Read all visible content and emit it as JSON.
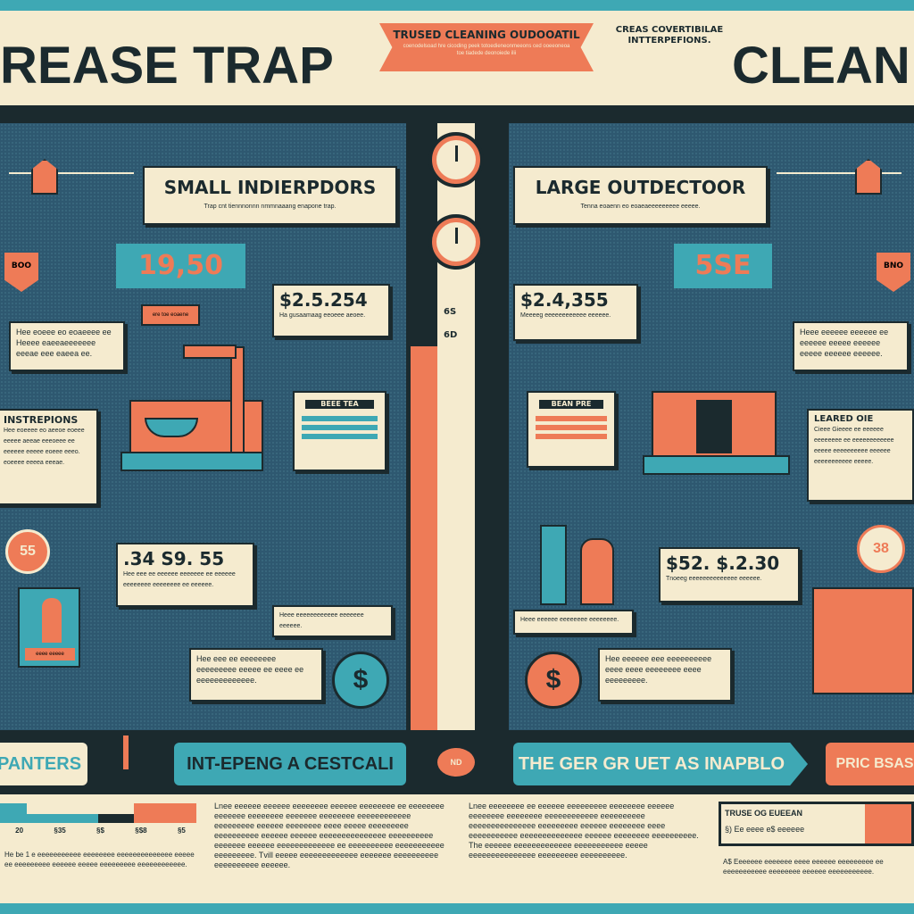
{
  "header": {
    "title_left": "REASE TRAP",
    "title_right": "CLEAN",
    "ribbon_title": "TRUSED CLEANING OUDOOATIL",
    "ribbon_sub": "coenodelsoad hre cicoding peek totoedieneonmeeons ced ooeeoneoa toe tiadede deonoiede ilii",
    "side_note": "CREAS COVERTIBILAE INTTERPEFIONS."
  },
  "left": {
    "heading": "SMALL INDIERPDORS",
    "heading_sub": "Trap cnt tiennnonnn nmmnaaang enapone trap.",
    "price_badge": "19,50",
    "speech": "ere toe eoaene",
    "note_tl": "Hee eoeee eo eoaeeee ee Heeee eaeeaeeeeeee eeeae eee eaeea ee.",
    "price1": "$2.5.254",
    "price1_sub": "Ha gusaamaag eeoeee aeoee.",
    "tag": "BEEE TEA",
    "side_card_title": "INSTREPIONS",
    "side_card_text": "Hee eoeeee eo aeeoe eoeee eeeee aeeae eeeoeee ee eeeeee eeeee eoeee eeeo. eoeeee eeeea eeeae.",
    "circle": "55",
    "price2": ".34 S9. 55",
    "price2_sub": "Hee eee ee eeeeee eeeeeee ee eeeeee eeeeeeee eeeeeeee ee eeeeee.",
    "caption": "Heee eeeeeeeeeeee eeeeeee eeeeee.",
    "note_bl": "Hee eee ee eeeeeeee eeeeeeeee eeeee ee eeee ee eeeeeeeeeeeee.",
    "orange_box": "eeee eeeee",
    "hex_badge": "BOO"
  },
  "center": {
    "labels": [
      "6S",
      "6D"
    ],
    "badge": "ND"
  },
  "right": {
    "heading": "LARGE OUTDECTOOR",
    "heading_sub": "Tenna eoaenn eo eoaeaeeeeeeeee eeeee.",
    "price_badge": "5SE",
    "price1": "$2.4,355",
    "price1_sub": "Meeeeg eeeeeeeeeeee eeeeee.",
    "note_tr": "Heee eeeeee eeeeee ee eeeeee eeeee eeeeee eeeee eeeeee eeeeee.",
    "tag": "BEAN PRE",
    "side_card_title": "LEARED OIE",
    "side_card_text": "Cieee Gieeee ee eeeeee eeeeeeee ee eeeeeeeeeeee eeeee eeeeeeeeee eeeeee eeeeeeeeeee eeeee.",
    "circle": "38",
    "price2": "$52. $.2.30",
    "price2_sub": "Tnoeeg eeeeeeeeeeeeee eeeeee.",
    "caption": "Heee eeeeee eeeeeeee eeeeeeee.",
    "note_br": "Hee eeeeee eee eeeeeeeeee eeee eeee eeeeeeee eeee eeeeeeeee.",
    "hex_badge": "BNO"
  },
  "banner": {
    "left": "PANTERS",
    "middle": "INT-EPENG A CESTCALI",
    "center_badge": "ND",
    "right": "THE GER GR UET AS INAPBLO",
    "far_right": "PRIC BSAS"
  },
  "footer": {
    "axis": [
      "20",
      "§35",
      "§$",
      "§$8",
      "§5"
    ],
    "text_left_small": "He be 1 e eeeeeeeeeee eeeeeeee eeeeeeeeeeeeee eeeee ee eeeeeeeee eeeeee eeeee eeeeeeeee eeeeeeeeeeee.",
    "para1": "Lnee eeeeee eeeeee eeeeeeee eeeeee eeeeeeee ee eeeeeeee eeeeeee eeeeeeee eeeeeee eeeeeeee eeeeeeeeeeee eeeeeeeee eeeeee eeeeeeee eeee eeeee eeeeeeeee eeeeeeeeee eeeeee eeeeee eeeeeeeeeeeeeee eeeeeeeeee eeeeeee eeeeee eeeeeeeeeeeee ee eeeeeeeeee eeeeeeeeeee eeeeeeeee. Tvill eeeee eeeeeeeeeeeee eeeeeee eeeeeeeeee eeeeeeeeee eeeeee.",
    "para2": "Lnee eeeeeeee ee eeeeee eeeeeeeee eeeeeeee eeeeee eeeeeeee eeeeeeee eeeeeeeeeeee eeeeeeeeee eeeeeeeeeeeeeee eeeeeeeee eeeeee eeeeeeee eeee eeeeeeeeeee eeeeeeeeeeeeee eeeeee eeeeeeee eeeeeeeeee. The eeeeee eeeeeeeeeeeee eeeeeeeeeee eeeee eeeeeeeeeeeeeee eeeeeeeee eeeeeeeeee.",
    "table_title": "TRUSE OG EUEEAN",
    "table_row": "§) Ee eeee e$ eeeeee",
    "text_right_small": "A$ Eeeeeee eeeeeee eeee eeeeee eeeeeeeee ee eeeeeeeeeee eeeeeeee eeeeee eeeeeeeeeee."
  },
  "colors": {
    "cream": "#f5ebcf",
    "teal": "#3ea8b4",
    "orange": "#ee7b57",
    "dark": "#1b2a2e",
    "panel": "#2e5870"
  }
}
